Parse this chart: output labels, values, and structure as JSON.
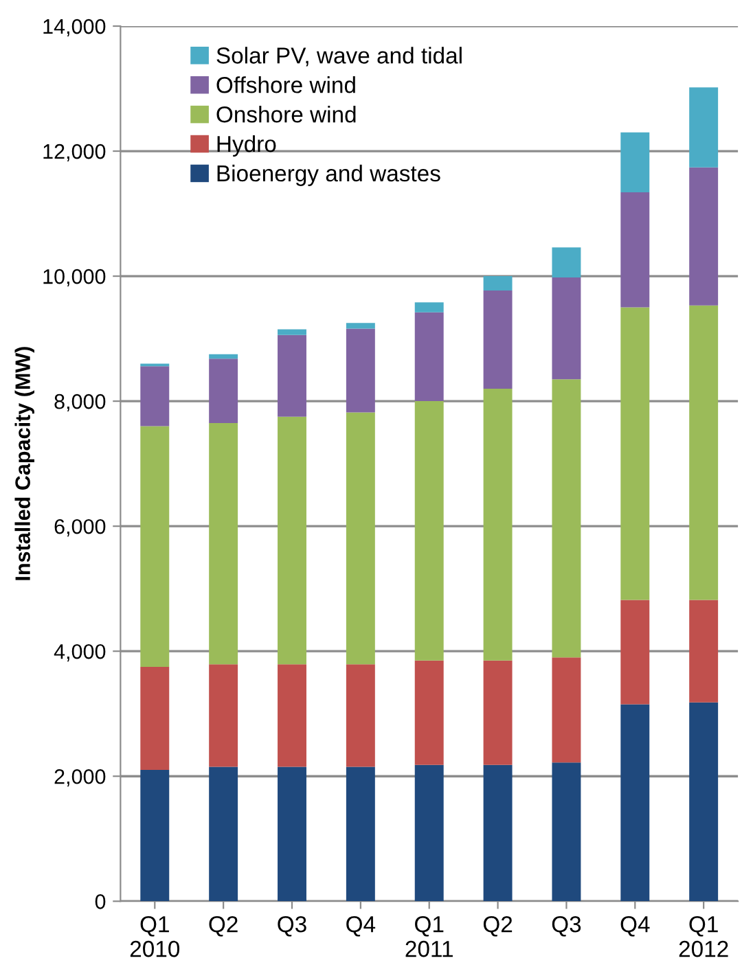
{
  "chart_data": {
    "type": "bar",
    "stacked": true,
    "ylabel": "Installed Capacity (MW)",
    "categories": [
      "Q1\n2010",
      "Q2",
      "Q3",
      "Q4",
      "Q1\n2011",
      "Q2",
      "Q3",
      "Q4",
      "Q1\n2012"
    ],
    "series": [
      {
        "name": "Bioenergy and wastes",
        "color": "#1f497d",
        "values": [
          2100,
          2150,
          2150,
          2150,
          2180,
          2180,
          2220,
          3150,
          3180
        ]
      },
      {
        "name": "Hydro",
        "color": "#c0504d",
        "values": [
          1650,
          1640,
          1640,
          1640,
          1670,
          1670,
          1680,
          1670,
          1640
        ]
      },
      {
        "name": "Onshore wind",
        "color": "#9bbb59",
        "values": [
          3850,
          3860,
          3960,
          4030,
          4150,
          4350,
          4450,
          4680,
          4710
        ]
      },
      {
        "name": "Offshore wind",
        "color": "#8064a2",
        "values": [
          960,
          1030,
          1310,
          1340,
          1420,
          1570,
          1630,
          1840,
          2210
        ]
      },
      {
        "name": "Solar PV, wave and tidal",
        "color": "#4bacc6",
        "values": [
          40,
          70,
          90,
          90,
          160,
          230,
          480,
          960,
          1280
        ]
      }
    ],
    "ylim": [
      0,
      14000
    ],
    "yticks": [
      {
        "value": 0,
        "label": "0"
      },
      {
        "value": 2000,
        "label": "2,000"
      },
      {
        "value": 4000,
        "label": "4,000"
      },
      {
        "value": 6000,
        "label": "6,000"
      },
      {
        "value": 8000,
        "label": "8,000"
      },
      {
        "value": 10000,
        "label": "10,000"
      },
      {
        "value": 12000,
        "label": "12,000"
      },
      {
        "value": 14000,
        "label": "14,000"
      }
    ],
    "grid": "y",
    "legend": "top left"
  }
}
